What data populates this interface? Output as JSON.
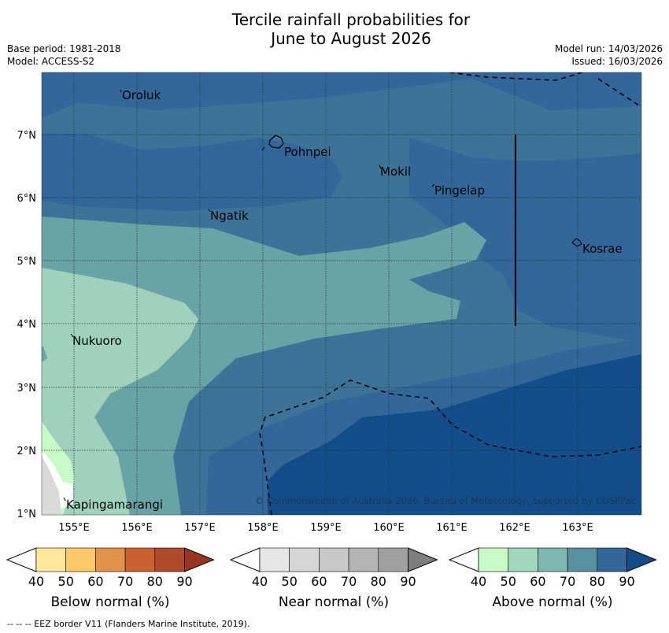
{
  "title": {
    "line1": "Tercile rainfall probabilities for",
    "line2": "June to August 2026"
  },
  "meta": {
    "base_period": "Base period: 1981-2018",
    "model": "Model: ACCESS-S2",
    "model_run": "Model run: 14/03/2026",
    "issued": "Issued: 16/03/2026"
  },
  "map": {
    "lon_labels": [
      "155°E",
      "156°E",
      "157°E",
      "158°E",
      "159°E",
      "160°E",
      "161°E",
      "162°E",
      "163°E"
    ],
    "lat_labels": [
      "7°N",
      "6°N",
      "5°N",
      "4°N",
      "3°N",
      "2°N",
      "1°N"
    ],
    "places": [
      "Oroluk",
      "Pohnpei",
      "Mokil",
      "Pingelap",
      "Ngatik",
      "Kosrae",
      "Nukuoro",
      "Kapingamarangi"
    ],
    "copyright": "© Commonwealth of Australia 2026, Bureau of Meteorology, supported by COSPPac"
  },
  "colorbars": [
    {
      "label": "Below normal (%)",
      "ticks": [
        "40",
        "50",
        "60",
        "70",
        "80",
        "90"
      ],
      "colors": [
        "#ffffff",
        "#fee799",
        "#fdc865",
        "#e0924a",
        "#cc6030",
        "#b04a28",
        "#9a3520"
      ]
    },
    {
      "label": "Near normal (%)",
      "ticks": [
        "40",
        "50",
        "60",
        "70",
        "80",
        "90"
      ],
      "colors": [
        "#ffffff",
        "#e6e6e6",
        "#d6d6d6",
        "#c8c8c8",
        "#b4b4b4",
        "#a0a0a0",
        "#7e7e7e"
      ]
    },
    {
      "label": "Above normal (%)",
      "ticks": [
        "40",
        "50",
        "60",
        "70",
        "80",
        "90"
      ],
      "colors": [
        "#ffffff",
        "#c8fac8",
        "#a0d8bc",
        "#7eb6b0",
        "#5890a0",
        "#336699",
        "#124f8a"
      ]
    }
  ],
  "footnote": "--  --  -- EEZ border V11 (Flanders Marine Institute, 2019)."
}
